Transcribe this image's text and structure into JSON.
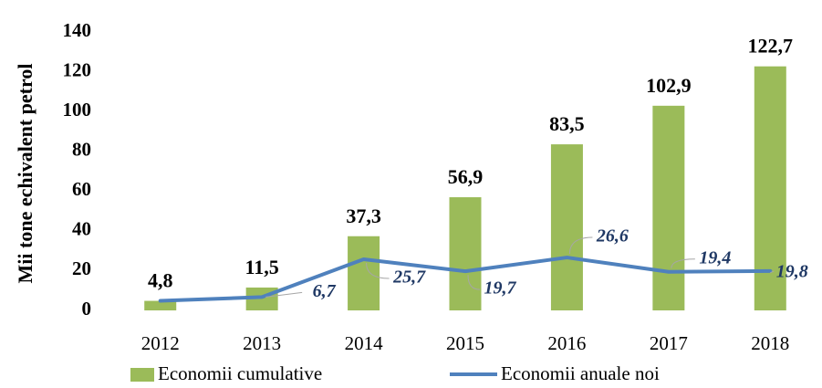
{
  "chart_data": {
    "type": "bar_line",
    "y_axis_label": "Mii tone echivalent petrol",
    "categories": [
      "2012",
      "2013",
      "2014",
      "2015",
      "2016",
      "2017",
      "2018"
    ],
    "series": [
      {
        "name": "Economii cumulative",
        "type": "bar",
        "color": "#9bbb59",
        "values": [
          4.8,
          11.5,
          37.3,
          56.9,
          83.5,
          102.9,
          122.7
        ],
        "value_labels": [
          "4,8",
          "11,5",
          "37,3",
          "56,9",
          "83,5",
          "102,9",
          "122,7"
        ]
      },
      {
        "name": "Economii anuale noi",
        "type": "line",
        "color": "#4f81bd",
        "values": [
          4.8,
          6.7,
          25.7,
          19.7,
          26.6,
          19.4,
          19.8
        ],
        "value_labels": [
          null,
          "6,7",
          "25,7",
          "19,7",
          "26,6",
          "19,4",
          "19,8"
        ]
      }
    ],
    "ylim": [
      0,
      140
    ],
    "yticks": [
      0,
      20,
      40,
      60,
      80,
      100,
      120,
      140
    ],
    "legend": "bottom"
  }
}
